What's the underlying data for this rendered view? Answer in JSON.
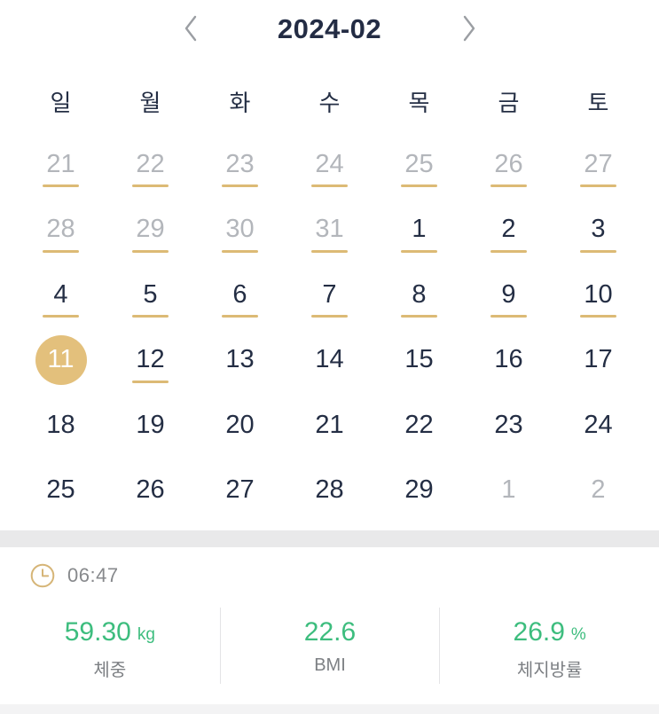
{
  "calendar": {
    "title": "2024-02",
    "nav": {
      "prev_icon": "chevron-left",
      "next_icon": "chevron-right"
    },
    "weekdays": [
      "일",
      "월",
      "화",
      "수",
      "목",
      "금",
      "토"
    ],
    "weeks": [
      [
        {
          "day": "21",
          "muted": true,
          "underline": true
        },
        {
          "day": "22",
          "muted": true,
          "underline": true
        },
        {
          "day": "23",
          "muted": true,
          "underline": true
        },
        {
          "day": "24",
          "muted": true,
          "underline": true
        },
        {
          "day": "25",
          "muted": true,
          "underline": true
        },
        {
          "day": "26",
          "muted": true,
          "underline": true
        },
        {
          "day": "27",
          "muted": true,
          "underline": true
        }
      ],
      [
        {
          "day": "28",
          "muted": true,
          "underline": true
        },
        {
          "day": "29",
          "muted": true,
          "underline": true
        },
        {
          "day": "30",
          "muted": true,
          "underline": true
        },
        {
          "day": "31",
          "muted": true,
          "underline": true
        },
        {
          "day": "1",
          "underline": true
        },
        {
          "day": "2",
          "underline": true
        },
        {
          "day": "3",
          "underline": true
        }
      ],
      [
        {
          "day": "4",
          "underline": true
        },
        {
          "day": "5",
          "underline": true
        },
        {
          "day": "6",
          "underline": true
        },
        {
          "day": "7",
          "underline": true
        },
        {
          "day": "8",
          "underline": true
        },
        {
          "day": "9",
          "underline": true
        },
        {
          "day": "10",
          "underline": true
        }
      ],
      [
        {
          "day": "11",
          "selected": true
        },
        {
          "day": "12",
          "underline": true
        },
        {
          "day": "13"
        },
        {
          "day": "14"
        },
        {
          "day": "15"
        },
        {
          "day": "16"
        },
        {
          "day": "17"
        }
      ],
      [
        {
          "day": "18"
        },
        {
          "day": "19"
        },
        {
          "day": "20"
        },
        {
          "day": "21"
        },
        {
          "day": "22"
        },
        {
          "day": "23"
        },
        {
          "day": "24"
        }
      ],
      [
        {
          "day": "25"
        },
        {
          "day": "26"
        },
        {
          "day": "27"
        },
        {
          "day": "28"
        },
        {
          "day": "29"
        },
        {
          "day": "1",
          "muted": true
        },
        {
          "day": "2",
          "muted": true
        }
      ]
    ]
  },
  "record": {
    "time_icon": "clock",
    "time": "06:47",
    "stats": [
      {
        "value": "59.30",
        "unit": "kg",
        "label": "체중"
      },
      {
        "value": "22.6",
        "unit": "",
        "label": "BMI"
      },
      {
        "value": "26.9",
        "unit": "%",
        "label": "체지방률"
      }
    ]
  },
  "colors": {
    "accent_gold": "#e3c07c",
    "underline_gold": "#dcba75",
    "accent_green": "#3dbd7e",
    "text_dark": "#242e44",
    "text_muted": "#b3b6bb",
    "divider_band": "#e9e9ea"
  }
}
